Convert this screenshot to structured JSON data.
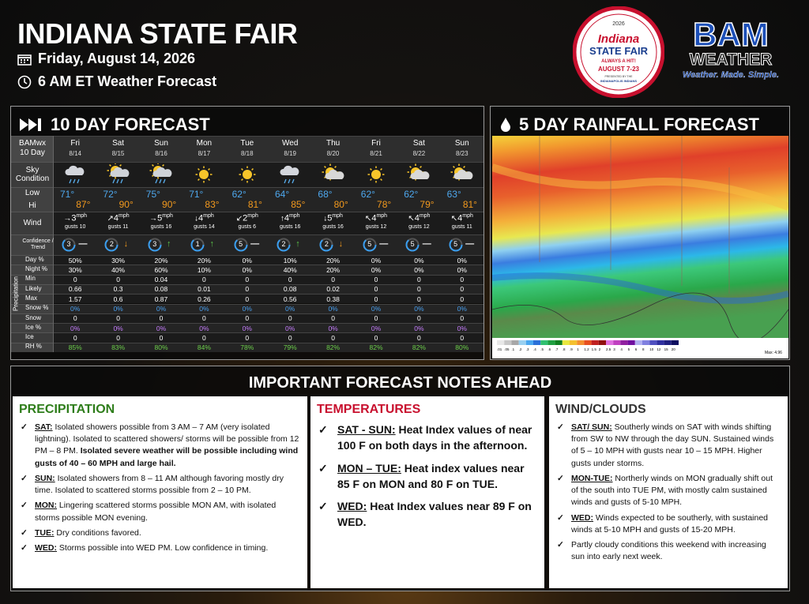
{
  "header": {
    "title": "INDIANA STATE FAIR",
    "date": "Friday, August 14, 2026",
    "subtitle": "6 AM ET Weather Forecast"
  },
  "fair_logo": {
    "year": "2026",
    "name": "Indiana",
    "event": "STATE FAIR",
    "tagline": "ALWAYS A HIT!",
    "dates": "AUGUST 7-23",
    "presented": "PRESENTED BY THE",
    "sponsor": "INDIANAPOLIS INDIANS"
  },
  "brand": {
    "name": "BAM",
    "sub": "WEATHER",
    "slogan": "Weather. Made. Simple."
  },
  "forecast": {
    "title": "10 DAY FORECAST",
    "corner": [
      "BAMwx",
      "10 Day"
    ],
    "precip_label": "Precipitation",
    "unit": "mph",
    "row_labels": {
      "sky": "Sky Condition",
      "low": "Low",
      "hi": "Hi",
      "wind": "Wind",
      "confidence": "Confidence / Trend",
      "day_pct": "Day %",
      "night_pct": "Night %",
      "min": "Min",
      "likely": "Likely",
      "max": "Max",
      "snow_pct": "Snow %",
      "snow": "Snow",
      "ice_pct": "Ice %",
      "ice": "Ice",
      "rh": "RH %"
    },
    "days": [
      {
        "day": "Fri",
        "date": "8/14",
        "low": "71°",
        "hi": "87°",
        "wind_dir": "→",
        "wind": "3",
        "gusts": "gusts 10",
        "confidence": "3",
        "trend": "—",
        "trend_color": "#ffffff",
        "day_pct": "50%",
        "night_pct": "30%",
        "min": "0",
        "likely": "0.66",
        "max": "1.57",
        "snow_pct": "0%",
        "snow": "0",
        "ice_pct": "0%",
        "ice": "0",
        "rh": "85%"
      },
      {
        "day": "Sat",
        "date": "8/15",
        "low": "72°",
        "hi": "90°",
        "wind_dir": "↗",
        "wind": "4",
        "gusts": "gusts 11",
        "confidence": "2",
        "trend": "↓",
        "trend_color": "#f39a1e",
        "day_pct": "30%",
        "night_pct": "40%",
        "min": "0",
        "likely": "0.3",
        "max": "0.6",
        "snow_pct": "0%",
        "snow": "0",
        "ice_pct": "0%",
        "ice": "0",
        "rh": "83%"
      },
      {
        "day": "Sun",
        "date": "8/16",
        "low": "75°",
        "hi": "90°",
        "wind_dir": "→",
        "wind": "5",
        "gusts": "gusts 16",
        "confidence": "3",
        "trend": "↑",
        "trend_color": "#5cc84a",
        "day_pct": "20%",
        "night_pct": "60%",
        "min": "0.04",
        "likely": "0.08",
        "max": "0.87",
        "snow_pct": "0%",
        "snow": "0",
        "ice_pct": "0%",
        "ice": "0",
        "rh": "80%"
      },
      {
        "day": "Mon",
        "date": "8/17",
        "low": "71°",
        "hi": "83°",
        "wind_dir": "↓",
        "wind": "4",
        "gusts": "gusts 14",
        "confidence": "1",
        "trend": "↑",
        "trend_color": "#5cc84a",
        "day_pct": "20%",
        "night_pct": "10%",
        "min": "0",
        "likely": "0.01",
        "max": "0.26",
        "snow_pct": "0%",
        "snow": "0",
        "ice_pct": "0%",
        "ice": "0",
        "rh": "84%"
      },
      {
        "day": "Tue",
        "date": "8/18",
        "low": "62°",
        "hi": "81°",
        "wind_dir": "↙",
        "wind": "2",
        "gusts": "gusts 6",
        "confidence": "5",
        "trend": "—",
        "trend_color": "#ffffff",
        "day_pct": "0%",
        "night_pct": "0%",
        "min": "0",
        "likely": "0",
        "max": "0",
        "snow_pct": "0%",
        "snow": "0",
        "ice_pct": "0%",
        "ice": "0",
        "rh": "78%"
      },
      {
        "day": "Wed",
        "date": "8/19",
        "low": "64°",
        "hi": "85°",
        "wind_dir": "↑",
        "wind": "4",
        "gusts": "gusts 16",
        "confidence": "2",
        "trend": "↑",
        "trend_color": "#5cc84a",
        "day_pct": "10%",
        "night_pct": "40%",
        "min": "0",
        "likely": "0.08",
        "max": "0.56",
        "snow_pct": "0%",
        "snow": "0",
        "ice_pct": "0%",
        "ice": "0",
        "rh": "79%"
      },
      {
        "day": "Thu",
        "date": "8/20",
        "low": "68°",
        "hi": "80°",
        "wind_dir": "↓",
        "wind": "5",
        "gusts": "gusts 16",
        "confidence": "2",
        "trend": "↓",
        "trend_color": "#f39a1e",
        "day_pct": "20%",
        "night_pct": "20%",
        "min": "0",
        "likely": "0.02",
        "max": "0.38",
        "snow_pct": "0%",
        "snow": "0",
        "ice_pct": "0%",
        "ice": "0",
        "rh": "82%"
      },
      {
        "day": "Fri",
        "date": "8/21",
        "low": "62°",
        "hi": "78°",
        "wind_dir": "↖",
        "wind": "4",
        "gusts": "gusts 12",
        "confidence": "5",
        "trend": "—",
        "trend_color": "#ffffff",
        "day_pct": "0%",
        "night_pct": "0%",
        "min": "0",
        "likely": "0",
        "max": "0",
        "snow_pct": "0%",
        "snow": "0",
        "ice_pct": "0%",
        "ice": "0",
        "rh": "82%"
      },
      {
        "day": "Sat",
        "date": "8/22",
        "low": "62°",
        "hi": "79°",
        "wind_dir": "↖",
        "wind": "4",
        "gusts": "gusts 12",
        "confidence": "5",
        "trend": "—",
        "trend_color": "#ffffff",
        "day_pct": "0%",
        "night_pct": "0%",
        "min": "0",
        "likely": "0",
        "max": "0",
        "snow_pct": "0%",
        "snow": "0",
        "ice_pct": "0%",
        "ice": "0",
        "rh": "82%"
      },
      {
        "day": "Sun",
        "date": "8/23",
        "low": "63°",
        "hi": "81°",
        "wind_dir": "↖",
        "wind": "4",
        "gusts": "gusts 11",
        "confidence": "5",
        "trend": "—",
        "trend_color": "#ffffff",
        "day_pct": "0%",
        "night_pct": "0%",
        "min": "0",
        "likely": "0",
        "max": "0",
        "snow_pct": "0%",
        "snow": "0",
        "ice_pct": "0%",
        "ice": "0",
        "rh": "80%"
      }
    ]
  },
  "rainfall": {
    "title": "5 DAY RAINFALL FORECAST",
    "scale": [
      ".01",
      ".05",
      ".1",
      ".2",
      ".3",
      ".4",
      ".5",
      ".6",
      ".7",
      ".8",
      ".9",
      "1",
      "1.2",
      "1.5",
      "2",
      "2.5",
      "3",
      "4",
      "5",
      "6",
      "8",
      "10",
      "12",
      "15",
      "20"
    ],
    "max": "Max: 4.96"
  },
  "notes": {
    "title": "IMPORTANT FORECAST NOTES AHEAD",
    "sections": [
      {
        "heading": "PRECIPITATION",
        "items": [
          {
            "lead": "SAT:",
            "text": " Isolated showers possible from 3 AM – 7 AM (very isolated lightning).  Isolated to scattered showers/ storms will be possible from 12 PM – 8 PM. ",
            "strong": "Isolated severe weather will be possible including wind gusts of 40 – 60 MPH and large hail."
          },
          {
            "lead": "SUN:",
            "text": " Isolated showers from 8 – 11 AM although favoring mostly dry time.  Isolated to scattered storms possible from 2 – 10 PM."
          },
          {
            "lead": "MON:",
            "text": " Lingering scattered storms possible MON AM, with isolated storms possible MON evening."
          },
          {
            "lead": "TUE:",
            "text": " Dry conditions favored."
          },
          {
            "lead": "WED:",
            "text": " Storms possible into WED PM.  Low confidence in timing."
          }
        ]
      },
      {
        "heading": "TEMPERATURES",
        "items": [
          {
            "lead": "SAT - SUN:",
            "text": " Heat Index values of near 100 F on both days in the afternoon."
          },
          {
            "lead": "MON – TUE:",
            "text": " Heat index values near 85 F on MON and 80 F on TUE."
          },
          {
            "lead": "WED:",
            "text": " Heat Index values near 89 F on WED."
          }
        ]
      },
      {
        "heading": "WIND/CLOUDS",
        "items": [
          {
            "lead": "SAT/ SUN:",
            "text": "  Southerly winds on SAT with winds shifting from SW to NW through the day SUN. Sustained winds of 5 – 10 MPH with gusts near 10 – 15 MPH.  Higher gusts under storms."
          },
          {
            "lead": "MON-TUE:",
            "text": " Northerly winds on MON gradually shift out of the south into TUE PM, with mostly calm sustained winds and gusts of 5-10 MPH."
          },
          {
            "lead": "WED:",
            "text": " Winds expected to be southerly, with sustained winds at 5-10 MPH and gusts of 15-20 MPH."
          },
          {
            "text": "Partly cloudy conditions this weekend with increasing sun into early next week."
          }
        ]
      }
    ]
  }
}
